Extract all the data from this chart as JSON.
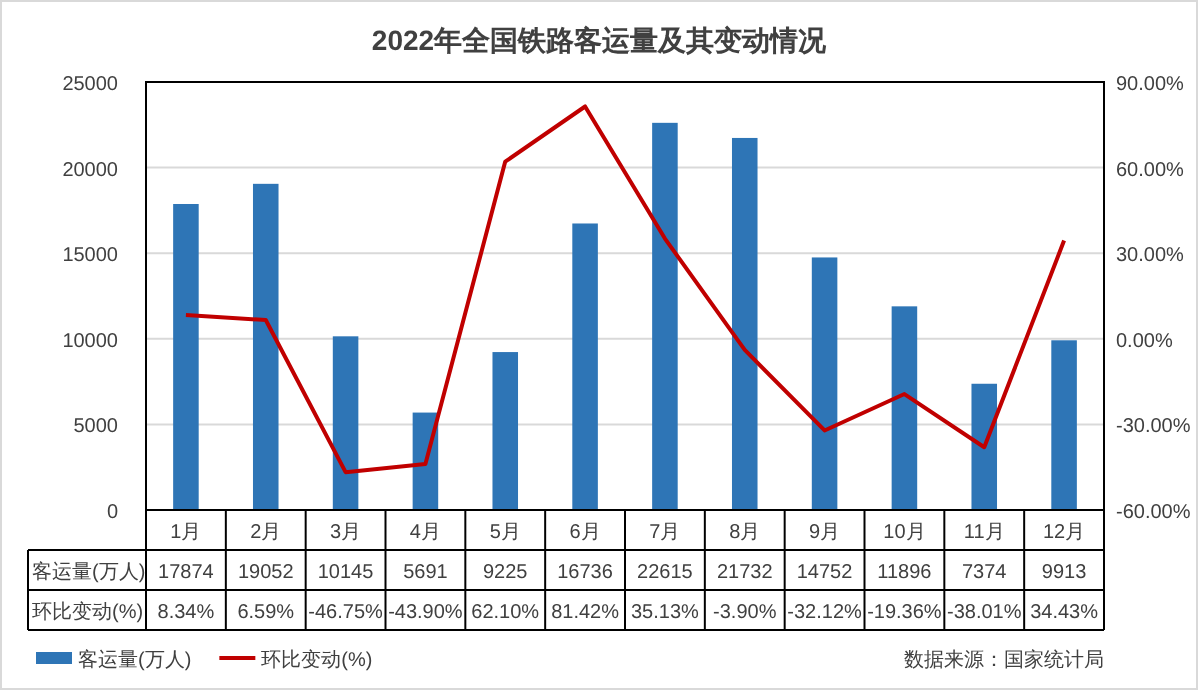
{
  "chart_data": {
    "type": "bar",
    "title": "2022年全国铁路客运量及其变动情况",
    "categories": [
      "1月",
      "2月",
      "3月",
      "4月",
      "5月",
      "6月",
      "7月",
      "8月",
      "9月",
      "10月",
      "11月",
      "12月"
    ],
    "series": [
      {
        "name": "客运量(万人)",
        "color": "#2e75b6",
        "values": [
          17874,
          19052,
          10145,
          5691,
          9225,
          16736,
          22615,
          21732,
          14752,
          11896,
          7374,
          9913
        ],
        "value_labels": [
          "17874",
          "19052",
          "10145",
          "5691",
          "9225",
          "16736",
          "22615",
          "21732",
          "14752",
          "11896",
          "7374",
          "9913"
        ]
      },
      {
        "name": "环比变动(%)",
        "type": "line",
        "axis": "y2",
        "color": "#c00000",
        "marker": "none",
        "line_style": "solid",
        "values": [
          8.34,
          6.59,
          -46.75,
          -43.9,
          62.1,
          81.42,
          35.13,
          -3.9,
          -32.12,
          -19.36,
          -38.01,
          34.43
        ],
        "value_labels": [
          "8.34%",
          "6.59%",
          "-46.75%",
          "-43.90%",
          "62.10%",
          "81.42%",
          "35.13%",
          "-3.90%",
          "-32.12%",
          "-19.36%",
          "-38.01%",
          "34.43%"
        ]
      }
    ],
    "ylim": [
      0,
      25000
    ],
    "yticks": [
      0,
      5000,
      10000,
      15000,
      20000,
      25000
    ],
    "y2lim": [
      -60,
      90
    ],
    "y2ticks": [
      {
        "value": -60,
        "label": "-60.00%"
      },
      {
        "value": -30,
        "label": "-30.00%"
      },
      {
        "value": 0,
        "label": "0.00%"
      },
      {
        "value": 30,
        "label": "30.00%"
      },
      {
        "value": 60,
        "label": "60.00%"
      },
      {
        "value": 90,
        "label": "90.00%"
      }
    ],
    "grid": "y",
    "legend": "bottom left",
    "annotations": [
      "数据来源：国家统计局"
    ]
  }
}
